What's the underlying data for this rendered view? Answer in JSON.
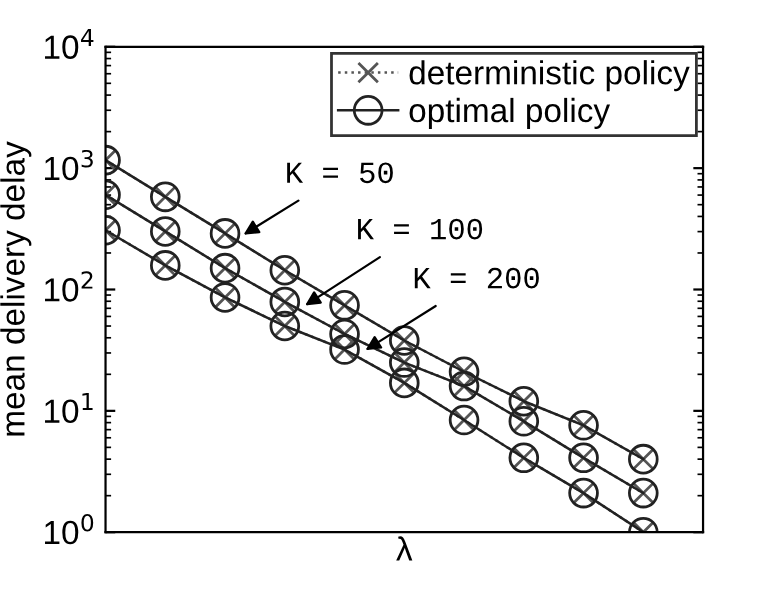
{
  "chart_data": {
    "type": "line",
    "xlabel": "λ",
    "ylabel": "mean delivery delay",
    "log": "y",
    "ylim": [
      1,
      10000
    ],
    "yticks": [
      {
        "value": 1,
        "label": "10$^{0}$"
      },
      {
        "value": 10,
        "label": "10$^{1}$"
      },
      {
        "value": 100,
        "label": "10$^{2}$"
      },
      {
        "value": 1000,
        "label": "10$^{3}$"
      },
      {
        "value": 10000,
        "label": "10$^{4}$"
      }
    ],
    "categories": [
      null,
      null,
      null,
      null,
      null,
      null,
      null,
      null,
      null,
      null
    ],
    "legend": "top right",
    "grid": false,
    "series": [
      {
        "name": "deterministic policy",
        "color": "#555555",
        "marker": "cross",
        "line_style": "dotted",
        "values": [
          1164,
          580,
          290,
          144,
          74,
          38,
          21,
          12,
          7.6,
          4.0
        ]
      },
      {
        "color": "#555555",
        "marker": "cross",
        "line_style": "dotted",
        "values": [
          603,
          301,
          150,
          79,
          43,
          25,
          16,
          8.2,
          4.1,
          2.1
        ]
      },
      {
        "color": "#555555",
        "marker": "cross",
        "line_style": "dotted",
        "values": [
          308,
          158,
          86,
          50,
          32,
          17,
          8.4,
          4.1,
          2.1,
          1.0
        ]
      },
      {
        "name": "optimal policy",
        "color": "#222222",
        "marker": "circle",
        "line_style": "solid",
        "values": [
          1164,
          580,
          290,
          144,
          74,
          38,
          21,
          12,
          7.6,
          4.0
        ]
      },
      {
        "color": "#222222",
        "marker": "circle",
        "line_style": "solid",
        "values": [
          603,
          301,
          150,
          79,
          43,
          25,
          16,
          8.2,
          4.1,
          2.1
        ]
      },
      {
        "color": "#222222",
        "marker": "circle",
        "line_style": "solid",
        "values": [
          308,
          158,
          86,
          50,
          32,
          17,
          8.4,
          4.1,
          2.1,
          1.0
        ]
      }
    ],
    "annotations": [
      "K = 50",
      "K = 100",
      "K = 200"
    ]
  }
}
